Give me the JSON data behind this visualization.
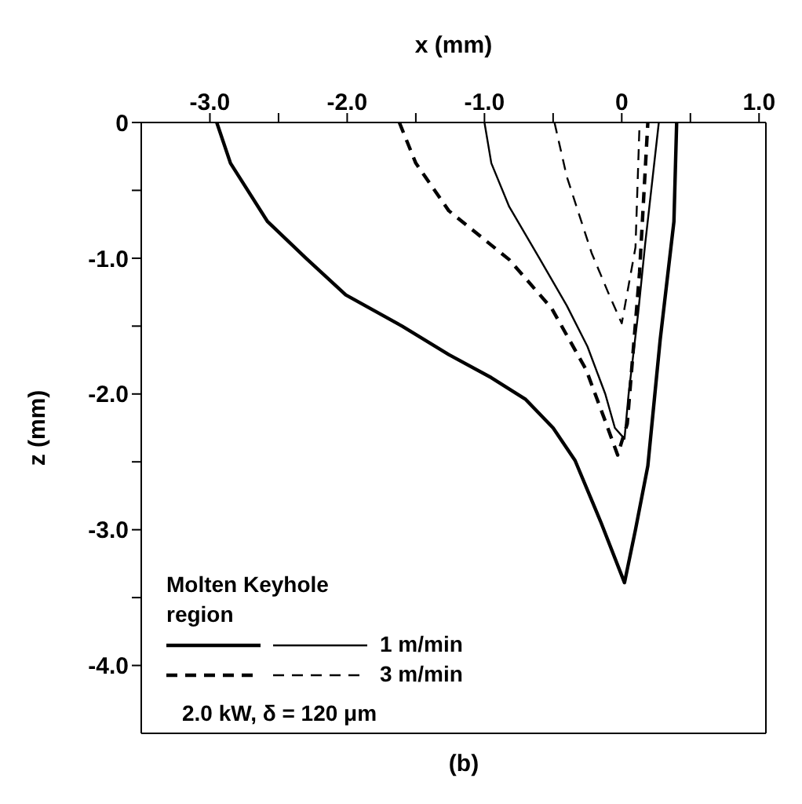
{
  "chart_data": {
    "type": "line",
    "xlabel": "x (mm)",
    "ylabel": "z (mm)",
    "legend_title": "Molten Keyhole region",
    "legend": "bottom left",
    "grid": false,
    "marker": "none",
    "xlim": [
      -3.5,
      1.05
    ],
    "ylim": [
      -4.5,
      0
    ],
    "xticks": [
      {
        "value": -3,
        "label": "-3.0"
      },
      {
        "value": -2.5,
        "label": null
      },
      {
        "value": -2,
        "label": "-2.0"
      },
      {
        "value": -1.5,
        "label": null
      },
      {
        "value": -1,
        "label": "-1.0"
      },
      {
        "value": -0.5,
        "label": null
      },
      0,
      {
        "value": 0.5,
        "label": null
      },
      {
        "value": 1,
        "label": "1.0"
      }
    ],
    "yticks": [
      0,
      {
        "value": -0.5,
        "label": null
      },
      {
        "value": -1,
        "label": "-1.0"
      },
      {
        "value": -1.5,
        "label": null
      },
      {
        "value": -2,
        "label": "-2.0"
      },
      {
        "value": -2.5,
        "label": null
      },
      {
        "value": -3,
        "label": "-3.0"
      },
      {
        "value": -3.5,
        "label": null
      },
      {
        "value": -4,
        "label": "-4.0"
      }
    ],
    "series": [
      {
        "color": "#000000",
        "line_style": "solid",
        "x": [
          -2.95,
          -2.85,
          -2.58,
          -2.3,
          -2.01,
          -1.6,
          -1.26,
          -0.95,
          -0.7,
          -0.5,
          -0.34,
          -0.15,
          0.02,
          0.1,
          0.19,
          0.28,
          0.38,
          0.4
        ],
        "values": [
          0,
          -0.3,
          -0.73,
          -1.0,
          -1.27,
          -1.5,
          -1.71,
          -1.88,
          -2.04,
          -2.25,
          -2.49,
          -2.95,
          -3.39,
          -3.0,
          -2.53,
          -1.6,
          -0.73,
          0
        ]
      },
      {
        "name": "1 m/min",
        "color": "#000000",
        "line_style": "solid",
        "x": [
          -1.0,
          -0.95,
          -0.82,
          -0.6,
          -0.4,
          -0.25,
          -0.12,
          -0.05,
          0.02,
          0.05,
          0.12,
          0.17,
          0.22,
          0.27
        ],
        "values": [
          0,
          -0.3,
          -0.62,
          -1.0,
          -1.35,
          -1.65,
          -2.0,
          -2.25,
          -2.33,
          -2.0,
          -1.4,
          -0.9,
          -0.45,
          0
        ]
      },
      {
        "color": "#000000",
        "line_style": "dashed",
        "x": [
          -1.62,
          -1.5,
          -1.26,
          -0.82,
          -0.51,
          -0.26,
          -0.12,
          -0.03,
          0.04,
          0.09,
          0.13,
          0.19
        ],
        "values": [
          0,
          -0.3,
          -0.65,
          -1.01,
          -1.37,
          -1.82,
          -2.2,
          -2.45,
          -2.22,
          -1.6,
          -1.1,
          0
        ]
      },
      {
        "name": "3 m/min",
        "color": "#000000",
        "line_style": "dashed",
        "x": [
          -0.49,
          -0.4,
          -0.22,
          -0.1,
          0,
          0.05,
          0.1,
          0.13
        ],
        "values": [
          0,
          -0.4,
          -0.96,
          -1.25,
          -1.48,
          -1.2,
          -0.92,
          0
        ]
      }
    ],
    "annotations": [
      "2.0 kW, δ = 120 μm",
      "(b)"
    ]
  }
}
